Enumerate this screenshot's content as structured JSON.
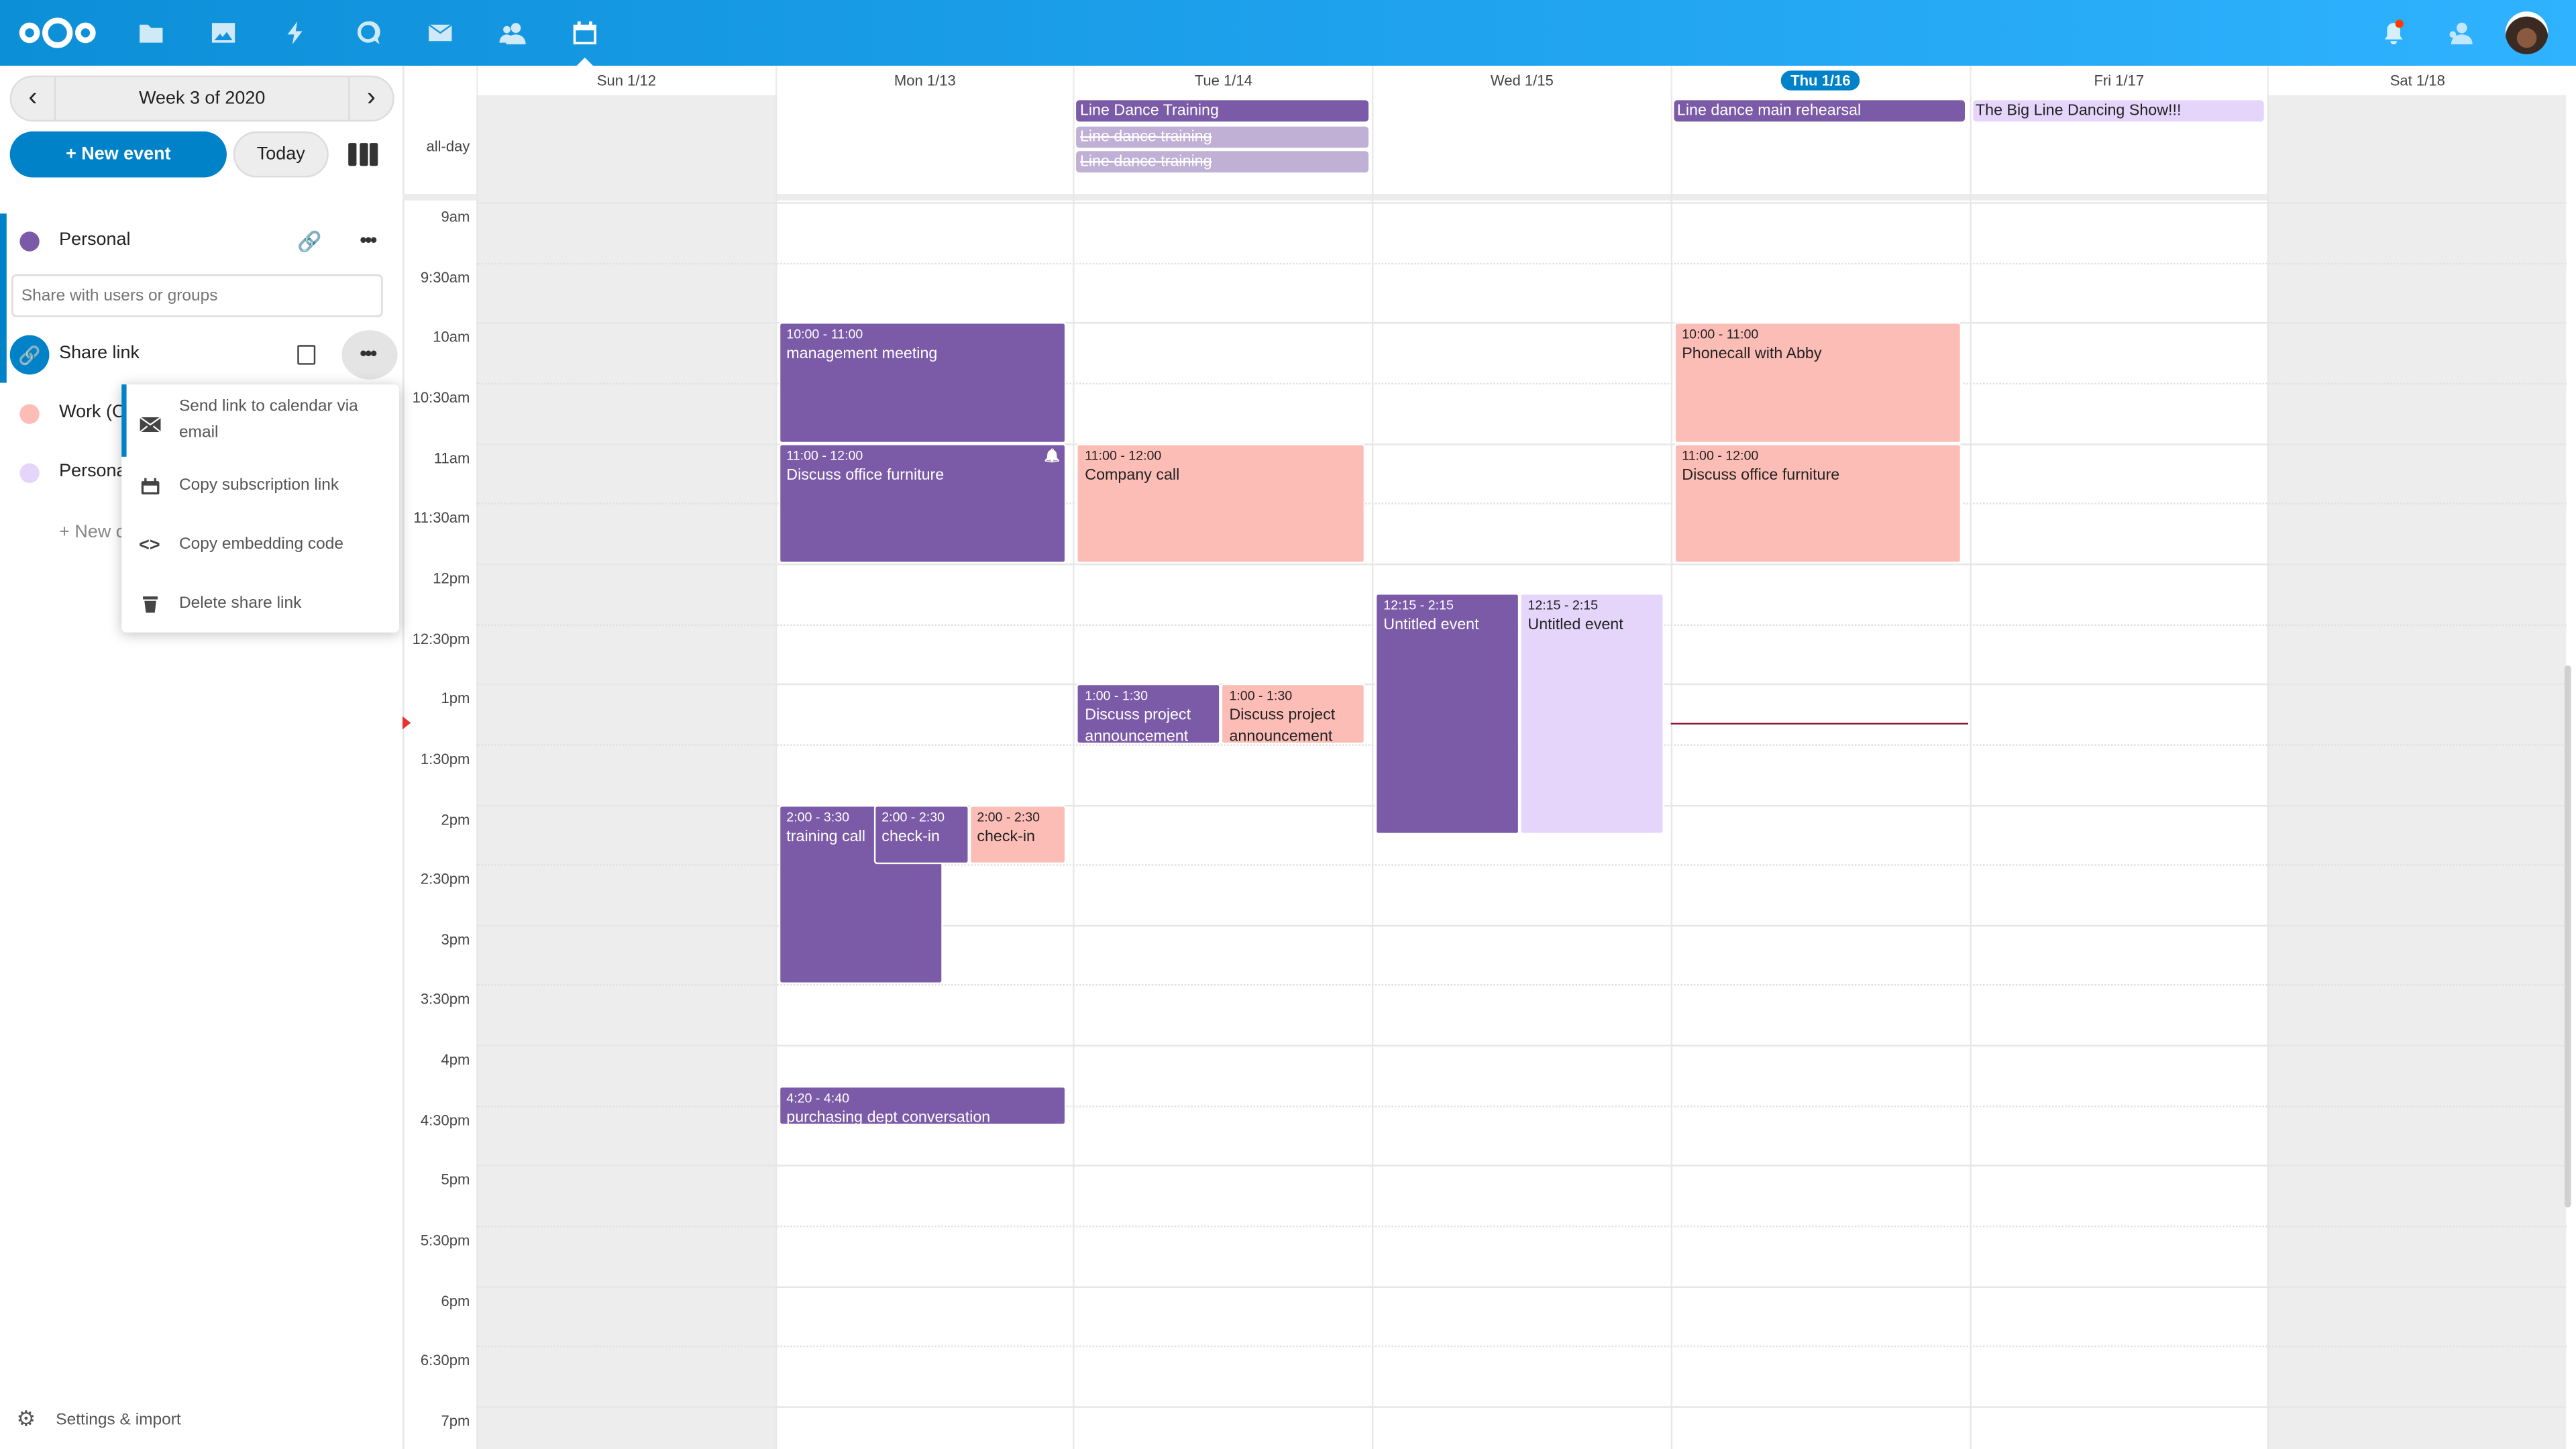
{
  "topbar": {
    "apps": [
      {
        "name": "files",
        "icon": "folder-icon"
      },
      {
        "name": "photos",
        "icon": "image-icon"
      },
      {
        "name": "activity",
        "icon": "lightning-icon"
      },
      {
        "name": "talk",
        "icon": "search-bubble-icon"
      },
      {
        "name": "mail",
        "icon": "mail-icon"
      },
      {
        "name": "contacts",
        "icon": "contacts-icon"
      },
      {
        "name": "calendar",
        "icon": "calendar-icon",
        "active": true
      }
    ],
    "notification_badge_color": "#ff3b00",
    "brand_gradient": [
      "#0d8fd8",
      "#2fb2ff"
    ]
  },
  "sidebar": {
    "week_label": "Week 3 of 2020",
    "new_event": "+ New event",
    "today": "Today",
    "calendars": [
      {
        "name": "Personal",
        "color": "#7b5aa8"
      },
      {
        "name": "Work (C",
        "color": "#fdbdb7"
      },
      {
        "name": "Persona",
        "color": "#e6d5fb"
      }
    ],
    "share_placeholder": "Share with users or groups",
    "share_link_label": "Share link",
    "new_calendar": "+ New c",
    "settings": "Settings & import",
    "share_menu": [
      {
        "label": "Send link to calendar via email",
        "icon": "mail-icon"
      },
      {
        "label": "Copy subscription link",
        "icon": "calendar-icon"
      },
      {
        "label": "Copy embedding code",
        "icon": "code-icon"
      },
      {
        "label": "Delete share link",
        "icon": "trash-icon"
      }
    ]
  },
  "calendar": {
    "allday_label": "all-day",
    "days": [
      {
        "label": "Sun 1/12",
        "weekend": true
      },
      {
        "label": "Mon 1/13"
      },
      {
        "label": "Tue 1/14"
      },
      {
        "label": "Wed 1/15"
      },
      {
        "label": "Thu 1/16",
        "today": true
      },
      {
        "label": "Fri 1/17"
      },
      {
        "label": "Sat 1/18",
        "weekend": true
      }
    ],
    "hours": [
      "9am",
      "9:30am",
      "10am",
      "10:30am",
      "11am",
      "11:30am",
      "12pm",
      "12:30pm",
      "1pm",
      "1:30pm",
      "2pm",
      "2:30pm",
      "3pm",
      "3:30pm",
      "4pm",
      "4:30pm",
      "5pm",
      "5:30pm",
      "6pm",
      "6:30pm",
      "7pm"
    ],
    "current_time": 13.33,
    "colors": {
      "purple": "#7b5aa8",
      "pink": "#fdbdb7",
      "lavender": "#e6d5fb",
      "faded": "#c0b0d6"
    },
    "allday_events": [
      {
        "day": 2,
        "title": "Line Dance Training",
        "color": "purple"
      },
      {
        "day": 2,
        "title": "Line dance training",
        "color": "faded",
        "cancelled": true
      },
      {
        "day": 2,
        "title": "Line dance training",
        "color": "faded",
        "cancelled": true
      },
      {
        "day": 4,
        "title": "Line dance main rehearsal",
        "color": "purple"
      },
      {
        "day": 5,
        "title": "The Big Line Dancing Show!!!",
        "color": "lavender"
      }
    ],
    "events": [
      {
        "day": 1,
        "start": 10,
        "end": 11,
        "time": "10:00 - 11:00",
        "title": "management meeting",
        "color": "purple"
      },
      {
        "day": 1,
        "start": 11,
        "end": 12,
        "time": "11:00 - 12:00",
        "title": "Discuss office furniture",
        "color": "purple",
        "alarm": true
      },
      {
        "day": 1,
        "start": 14,
        "end": 15.5,
        "time": "2:00 - 3:30",
        "title": "training call",
        "color": "purple"
      },
      {
        "day": 1,
        "start": 14,
        "end": 14.5,
        "time": "2:00 - 2:30",
        "title": "check-in",
        "color": "purple"
      },
      {
        "day": 1,
        "start": 14,
        "end": 14.5,
        "time": "2:00 - 2:30",
        "title": "check-in",
        "color": "pink"
      },
      {
        "day": 1,
        "start": 16.333,
        "end": 16.667,
        "time": "4:20 - 4:40",
        "title": "purchasing dept conversation",
        "color": "purple"
      },
      {
        "day": 2,
        "start": 11,
        "end": 12,
        "time": "11:00 - 12:00",
        "title": "Company call",
        "color": "pink"
      },
      {
        "day": 2,
        "start": 13,
        "end": 13.5,
        "time": "1:00 - 1:30",
        "title": "Discuss project announcement",
        "color": "purple"
      },
      {
        "day": 2,
        "start": 13,
        "end": 13.5,
        "time": "1:00 - 1:30",
        "title": "Discuss project announcement",
        "color": "pink"
      },
      {
        "day": 3,
        "start": 12.25,
        "end": 14.25,
        "time": "12:15 - 2:15",
        "title": "Untitled event",
        "color": "purple"
      },
      {
        "day": 3,
        "start": 12.25,
        "end": 14.25,
        "time": "12:15 - 2:15",
        "title": "Untitled event",
        "color": "lavender"
      },
      {
        "day": 4,
        "start": 10,
        "end": 11,
        "time": "10:00 - 11:00",
        "title": "Phonecall with Abby",
        "color": "pink"
      },
      {
        "day": 4,
        "start": 11,
        "end": 12,
        "time": "11:00 - 12:00",
        "title": "Discuss office furniture",
        "color": "pink"
      }
    ]
  }
}
